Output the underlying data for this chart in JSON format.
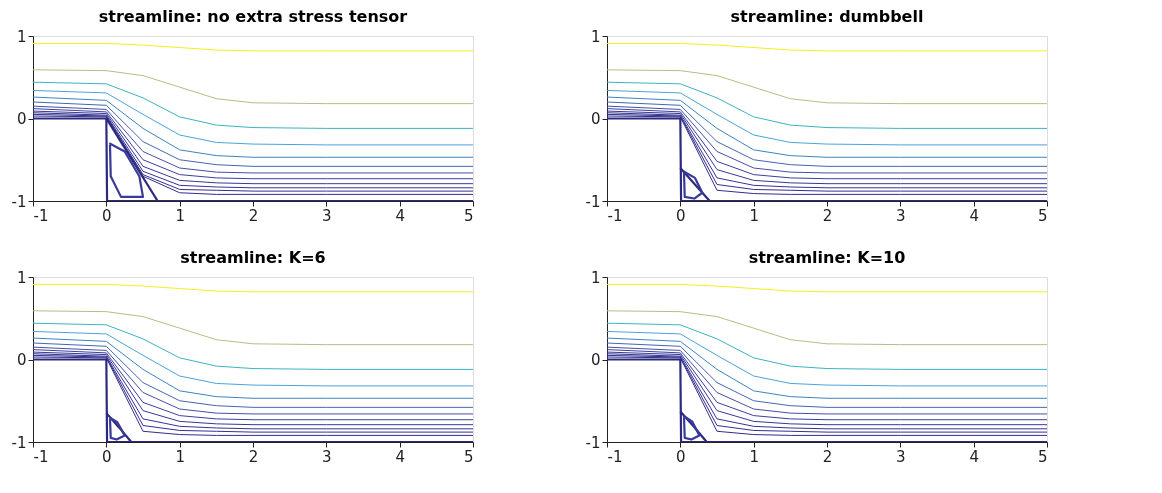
{
  "chart_data": [
    {
      "type": "line",
      "title": "streamline: no extra stress tensor",
      "xlim": [
        -1,
        5
      ],
      "ylim": [
        -1,
        1
      ],
      "xticks": [
        -1,
        0,
        1,
        2,
        3,
        4,
        5
      ],
      "yticks": [
        -1,
        0,
        1
      ],
      "grid": false,
      "line_style": "solid",
      "series": [
        {
          "color": "#f2f01e",
          "x": [
            -1,
            0,
            0.5,
            1,
            1.5,
            2,
            3,
            5
          ],
          "values": [
            0.91,
            0.91,
            0.89,
            0.86,
            0.83,
            0.82,
            0.82,
            0.82
          ]
        },
        {
          "color": "#b5be85",
          "x": [
            -1,
            0,
            0.5,
            1,
            1.5,
            2,
            3,
            5
          ],
          "values": [
            0.59,
            0.58,
            0.52,
            0.38,
            0.24,
            0.19,
            0.18,
            0.18
          ]
        },
        {
          "color": "#3ab5c0",
          "x": [
            -1,
            0,
            0.5,
            1,
            1.5,
            2,
            3,
            5
          ],
          "values": [
            0.44,
            0.42,
            0.25,
            0.02,
            -0.08,
            -0.11,
            -0.12,
            -0.12
          ]
        },
        {
          "color": "#4aa3dd",
          "x": [
            -1,
            0,
            0.5,
            1,
            1.5,
            2,
            3,
            5
          ],
          "values": [
            0.34,
            0.31,
            0.05,
            -0.2,
            -0.29,
            -0.31,
            -0.32,
            -0.32
          ]
        },
        {
          "color": "#3d84c2",
          "x": [
            -1,
            0,
            0.5,
            1,
            1.5,
            2,
            3,
            5
          ],
          "values": [
            0.26,
            0.22,
            -0.12,
            -0.38,
            -0.45,
            -0.47,
            -0.47,
            -0.47
          ]
        },
        {
          "color": "#4466b0",
          "x": [
            -1,
            0,
            0.5,
            1,
            1.5,
            2,
            3,
            5
          ],
          "values": [
            0.2,
            0.16,
            -0.28,
            -0.5,
            -0.56,
            -0.58,
            -0.58,
            -0.58
          ]
        },
        {
          "color": "#4450a8",
          "x": [
            -1,
            0,
            0.5,
            1,
            1.5,
            2,
            3,
            5
          ],
          "values": [
            0.15,
            0.11,
            -0.4,
            -0.6,
            -0.65,
            -0.66,
            -0.66,
            -0.66
          ]
        },
        {
          "color": "#3c3f9e",
          "x": [
            -1,
            0,
            0.5,
            1,
            1.5,
            2,
            3,
            5
          ],
          "values": [
            0.12,
            0.08,
            -0.5,
            -0.68,
            -0.72,
            -0.73,
            -0.73,
            -0.73
          ]
        },
        {
          "color": "#383898",
          "x": [
            -1,
            0,
            0.5,
            1,
            1.5,
            2,
            3,
            5
          ],
          "values": [
            0.09,
            0.06,
            -0.58,
            -0.75,
            -0.78,
            -0.79,
            -0.79,
            -0.79
          ]
        },
        {
          "color": "#353494",
          "x": [
            -1,
            0,
            0.5,
            1,
            1.5,
            2,
            3,
            5
          ],
          "values": [
            0.07,
            0.04,
            -0.64,
            -0.81,
            -0.83,
            -0.84,
            -0.84,
            -0.84
          ]
        },
        {
          "color": "#333090",
          "x": [
            -1,
            0,
            0.5,
            1,
            1.5,
            2,
            3,
            5
          ],
          "values": [
            0.05,
            0.03,
            -0.68,
            -0.86,
            -0.87,
            -0.88,
            -0.88,
            -0.88
          ]
        },
        {
          "color": "#312d8c",
          "x": [
            -1,
            0,
            0.5,
            1,
            1.5,
            2,
            3,
            5
          ],
          "values": [
            0.03,
            0.02,
            -0.7,
            -0.9,
            -0.92,
            -0.92,
            -0.92,
            -0.92
          ]
        },
        {
          "color": "#2b2a7e",
          "x": [
            0,
            0.35,
            0.7
          ],
          "values": [
            0,
            -0.5,
            -1
          ]
        },
        {
          "color": "#3a3a9a",
          "x": [
            0.04,
            0.25,
            0.45,
            0.5,
            0.2,
            0.06,
            0.05
          ],
          "values": [
            -0.3,
            -0.4,
            -0.7,
            -0.95,
            -0.95,
            -0.7,
            -0.32
          ]
        },
        {
          "color": "#2b2a7e",
          "x": [
            -1,
            0,
            0.01,
            5
          ],
          "values": [
            0,
            0,
            -1,
            -1
          ]
        }
      ]
    },
    {
      "type": "line",
      "title": "streamline: dumbbell",
      "xlim": [
        -1,
        5
      ],
      "ylim": [
        -1,
        1
      ],
      "xticks": [
        -1,
        0,
        1,
        2,
        3,
        4,
        5
      ],
      "yticks": [
        -1,
        0,
        1
      ],
      "grid": false,
      "line_style": "solid",
      "series": [
        {
          "color": "#f2f01e",
          "x": [
            -1,
            0,
            0.5,
            1,
            1.5,
            2,
            3,
            5
          ],
          "values": [
            0.91,
            0.91,
            0.89,
            0.86,
            0.83,
            0.82,
            0.82,
            0.82
          ]
        },
        {
          "color": "#b5be85",
          "x": [
            -1,
            0,
            0.5,
            1,
            1.5,
            2,
            3,
            5
          ],
          "values": [
            0.59,
            0.58,
            0.52,
            0.38,
            0.24,
            0.19,
            0.18,
            0.18
          ]
        },
        {
          "color": "#3ab5c0",
          "x": [
            -1,
            0,
            0.5,
            1,
            1.5,
            2,
            3,
            5
          ],
          "values": [
            0.44,
            0.42,
            0.25,
            0.02,
            -0.08,
            -0.11,
            -0.12,
            -0.12
          ]
        },
        {
          "color": "#4aa3dd",
          "x": [
            -1,
            0,
            0.5,
            1,
            1.5,
            2,
            3,
            5
          ],
          "values": [
            0.34,
            0.31,
            0.05,
            -0.2,
            -0.29,
            -0.31,
            -0.32,
            -0.32
          ]
        },
        {
          "color": "#3d84c2",
          "x": [
            -1,
            0,
            0.5,
            1,
            1.5,
            2,
            3,
            5
          ],
          "values": [
            0.26,
            0.22,
            -0.12,
            -0.38,
            -0.45,
            -0.47,
            -0.47,
            -0.47
          ]
        },
        {
          "color": "#4466b0",
          "x": [
            -1,
            0,
            0.5,
            1,
            1.5,
            2,
            3,
            5
          ],
          "values": [
            0.2,
            0.16,
            -0.28,
            -0.5,
            -0.56,
            -0.58,
            -0.58,
            -0.58
          ]
        },
        {
          "color": "#4450a8",
          "x": [
            -1,
            0,
            0.5,
            1,
            1.5,
            2,
            3,
            5
          ],
          "values": [
            0.15,
            0.11,
            -0.4,
            -0.6,
            -0.65,
            -0.66,
            -0.66,
            -0.66
          ]
        },
        {
          "color": "#3c3f9e",
          "x": [
            -1,
            0,
            0.5,
            1,
            1.5,
            2,
            3,
            5
          ],
          "values": [
            0.12,
            0.08,
            -0.52,
            -0.68,
            -0.72,
            -0.73,
            -0.73,
            -0.73
          ]
        },
        {
          "color": "#383898",
          "x": [
            -1,
            0,
            0.5,
            1,
            1.5,
            2,
            3,
            5
          ],
          "values": [
            0.09,
            0.06,
            -0.62,
            -0.75,
            -0.78,
            -0.79,
            -0.79,
            -0.79
          ]
        },
        {
          "color": "#353494",
          "x": [
            -1,
            0,
            0.5,
            1,
            1.5,
            2,
            3,
            5
          ],
          "values": [
            0.07,
            0.04,
            -0.72,
            -0.81,
            -0.83,
            -0.84,
            -0.84,
            -0.84
          ]
        },
        {
          "color": "#333090",
          "x": [
            -1,
            0,
            0.5,
            1,
            1.5,
            2,
            3,
            5
          ],
          "values": [
            0.05,
            0.03,
            -0.8,
            -0.86,
            -0.87,
            -0.88,
            -0.88,
            -0.88
          ]
        },
        {
          "color": "#312d8c",
          "x": [
            -1,
            0,
            0.5,
            1,
            1.5,
            2,
            3,
            5
          ],
          "values": [
            0.03,
            0.02,
            -0.87,
            -0.91,
            -0.92,
            -0.92,
            -0.92,
            -0.92
          ]
        },
        {
          "color": "#2b2a7e",
          "x": [
            0,
            0.2,
            0.4
          ],
          "values": [
            -0.6,
            -0.8,
            -1
          ]
        },
        {
          "color": "#3a3a9a",
          "x": [
            0.04,
            0.2,
            0.3,
            0.19,
            0.06,
            0.05
          ],
          "values": [
            -0.64,
            -0.72,
            -0.9,
            -0.97,
            -0.95,
            -0.66
          ]
        },
        {
          "color": "#2b2a7e",
          "x": [
            -1,
            0,
            0.01,
            5
          ],
          "values": [
            0,
            0,
            -1,
            -1
          ]
        }
      ]
    },
    {
      "type": "line",
      "title": "streamline: K=6",
      "xlim": [
        -1,
        5
      ],
      "ylim": [
        -1,
        1
      ],
      "xticks": [
        -1,
        0,
        1,
        2,
        3,
        4,
        5
      ],
      "yticks": [
        -1,
        0,
        1
      ],
      "grid": false,
      "line_style": "solid",
      "series": [
        {
          "color": "#f2f01e",
          "x": [
            -1,
            0,
            0.5,
            1,
            1.5,
            2,
            3,
            5
          ],
          "values": [
            0.91,
            0.91,
            0.89,
            0.86,
            0.83,
            0.82,
            0.82,
            0.82
          ]
        },
        {
          "color": "#b5be85",
          "x": [
            -1,
            0,
            0.5,
            1,
            1.5,
            2,
            3,
            5
          ],
          "values": [
            0.59,
            0.58,
            0.52,
            0.38,
            0.24,
            0.19,
            0.18,
            0.18
          ]
        },
        {
          "color": "#3ab5c0",
          "x": [
            -1,
            0,
            0.5,
            1,
            1.5,
            2,
            3,
            5
          ],
          "values": [
            0.44,
            0.42,
            0.25,
            0.02,
            -0.08,
            -0.11,
            -0.12,
            -0.12
          ]
        },
        {
          "color": "#4aa3dd",
          "x": [
            -1,
            0,
            0.5,
            1,
            1.5,
            2,
            3,
            5
          ],
          "values": [
            0.34,
            0.31,
            0.05,
            -0.2,
            -0.29,
            -0.31,
            -0.32,
            -0.32
          ]
        },
        {
          "color": "#3d84c2",
          "x": [
            -1,
            0,
            0.5,
            1,
            1.5,
            2,
            3,
            5
          ],
          "values": [
            0.26,
            0.22,
            -0.12,
            -0.38,
            -0.45,
            -0.47,
            -0.47,
            -0.47
          ]
        },
        {
          "color": "#4466b0",
          "x": [
            -1,
            0,
            0.5,
            1,
            1.5,
            2,
            3,
            5
          ],
          "values": [
            0.2,
            0.16,
            -0.28,
            -0.5,
            -0.56,
            -0.58,
            -0.58,
            -0.58
          ]
        },
        {
          "color": "#4450a8",
          "x": [
            -1,
            0,
            0.5,
            1,
            1.5,
            2,
            3,
            5
          ],
          "values": [
            0.15,
            0.11,
            -0.4,
            -0.6,
            -0.65,
            -0.66,
            -0.66,
            -0.66
          ]
        },
        {
          "color": "#3c3f9e",
          "x": [
            -1,
            0,
            0.5,
            1,
            1.5,
            2,
            3,
            5
          ],
          "values": [
            0.12,
            0.08,
            -0.52,
            -0.68,
            -0.72,
            -0.73,
            -0.73,
            -0.73
          ]
        },
        {
          "color": "#383898",
          "x": [
            -1,
            0,
            0.5,
            1,
            1.5,
            2,
            3,
            5
          ],
          "values": [
            0.09,
            0.06,
            -0.62,
            -0.75,
            -0.78,
            -0.79,
            -0.79,
            -0.79
          ]
        },
        {
          "color": "#353494",
          "x": [
            -1,
            0,
            0.5,
            1,
            1.5,
            2,
            3,
            5
          ],
          "values": [
            0.07,
            0.04,
            -0.72,
            -0.81,
            -0.83,
            -0.84,
            -0.84,
            -0.84
          ]
        },
        {
          "color": "#333090",
          "x": [
            -1,
            0,
            0.5,
            1,
            1.5,
            2,
            3,
            5
          ],
          "values": [
            0.05,
            0.03,
            -0.8,
            -0.86,
            -0.87,
            -0.88,
            -0.88,
            -0.88
          ]
        },
        {
          "color": "#312d8c",
          "x": [
            -1,
            0,
            0.5,
            1,
            1.5,
            2,
            3,
            5
          ],
          "values": [
            0.03,
            0.02,
            -0.87,
            -0.91,
            -0.92,
            -0.92,
            -0.92,
            -0.92
          ]
        },
        {
          "color": "#2b2a7e",
          "x": [
            0,
            0.17,
            0.34
          ],
          "values": [
            -0.65,
            -0.82,
            -1
          ]
        },
        {
          "color": "#3a3a9a",
          "x": [
            0.04,
            0.15,
            0.25,
            0.14,
            0.06,
            0.05
          ],
          "values": [
            -0.7,
            -0.76,
            -0.92,
            -0.97,
            -0.95,
            -0.72
          ]
        },
        {
          "color": "#2b2a7e",
          "x": [
            -1,
            0,
            0.01,
            5
          ],
          "values": [
            0,
            0,
            -1,
            -1
          ]
        }
      ]
    },
    {
      "type": "line",
      "title": "streamline: K=10",
      "xlim": [
        -1,
        5
      ],
      "ylim": [
        -1,
        1
      ],
      "xticks": [
        -1,
        0,
        1,
        2,
        3,
        4,
        5
      ],
      "yticks": [
        -1,
        0,
        1
      ],
      "grid": false,
      "line_style": "solid",
      "series": [
        {
          "color": "#f2f01e",
          "x": [
            -1,
            0,
            0.5,
            1,
            1.5,
            2,
            3,
            5
          ],
          "values": [
            0.91,
            0.91,
            0.89,
            0.86,
            0.83,
            0.82,
            0.82,
            0.82
          ]
        },
        {
          "color": "#b5be85",
          "x": [
            -1,
            0,
            0.5,
            1,
            1.5,
            2,
            3,
            5
          ],
          "values": [
            0.59,
            0.58,
            0.52,
            0.38,
            0.24,
            0.19,
            0.18,
            0.18
          ]
        },
        {
          "color": "#3ab5c0",
          "x": [
            -1,
            0,
            0.5,
            1,
            1.5,
            2,
            3,
            5
          ],
          "values": [
            0.44,
            0.42,
            0.25,
            0.02,
            -0.08,
            -0.11,
            -0.12,
            -0.12
          ]
        },
        {
          "color": "#4aa3dd",
          "x": [
            -1,
            0,
            0.5,
            1,
            1.5,
            2,
            3,
            5
          ],
          "values": [
            0.34,
            0.31,
            0.05,
            -0.2,
            -0.29,
            -0.31,
            -0.32,
            -0.32
          ]
        },
        {
          "color": "#3d84c2",
          "x": [
            -1,
            0,
            0.5,
            1,
            1.5,
            2,
            3,
            5
          ],
          "values": [
            0.26,
            0.22,
            -0.12,
            -0.38,
            -0.45,
            -0.47,
            -0.47,
            -0.47
          ]
        },
        {
          "color": "#4466b0",
          "x": [
            -1,
            0,
            0.5,
            1,
            1.5,
            2,
            3,
            5
          ],
          "values": [
            0.2,
            0.16,
            -0.28,
            -0.5,
            -0.56,
            -0.58,
            -0.58,
            -0.58
          ]
        },
        {
          "color": "#4450a8",
          "x": [
            -1,
            0,
            0.5,
            1,
            1.5,
            2,
            3,
            5
          ],
          "values": [
            0.15,
            0.11,
            -0.4,
            -0.6,
            -0.65,
            -0.66,
            -0.66,
            -0.66
          ]
        },
        {
          "color": "#3c3f9e",
          "x": [
            -1,
            0,
            0.5,
            1,
            1.5,
            2,
            3,
            5
          ],
          "values": [
            0.12,
            0.08,
            -0.52,
            -0.68,
            -0.72,
            -0.73,
            -0.73,
            -0.73
          ]
        },
        {
          "color": "#383898",
          "x": [
            -1,
            0,
            0.5,
            1,
            1.5,
            2,
            3,
            5
          ],
          "values": [
            0.09,
            0.06,
            -0.62,
            -0.75,
            -0.78,
            -0.79,
            -0.79,
            -0.79
          ]
        },
        {
          "color": "#353494",
          "x": [
            -1,
            0,
            0.5,
            1,
            1.5,
            2,
            3,
            5
          ],
          "values": [
            0.07,
            0.04,
            -0.72,
            -0.81,
            -0.83,
            -0.84,
            -0.84,
            -0.84
          ]
        },
        {
          "color": "#333090",
          "x": [
            -1,
            0,
            0.5,
            1,
            1.5,
            2,
            3,
            5
          ],
          "values": [
            0.05,
            0.03,
            -0.8,
            -0.86,
            -0.87,
            -0.88,
            -0.88,
            -0.88
          ]
        },
        {
          "color": "#312d8c",
          "x": [
            -1,
            0,
            0.5,
            1,
            1.5,
            2,
            3,
            5
          ],
          "values": [
            0.03,
            0.02,
            -0.87,
            -0.91,
            -0.92,
            -0.92,
            -0.92,
            -0.92
          ]
        },
        {
          "color": "#2b2a7e",
          "x": [
            0,
            0.18,
            0.36
          ],
          "values": [
            -0.63,
            -0.81,
            -1
          ]
        },
        {
          "color": "#3a3a9a",
          "x": [
            0.04,
            0.16,
            0.26,
            0.15,
            0.06,
            0.05
          ],
          "values": [
            -0.68,
            -0.75,
            -0.92,
            -0.97,
            -0.95,
            -0.7
          ]
        },
        {
          "color": "#2b2a7e",
          "x": [
            -1,
            0,
            0.01,
            5
          ],
          "values": [
            0,
            0,
            -1,
            -1
          ]
        }
      ]
    }
  ]
}
